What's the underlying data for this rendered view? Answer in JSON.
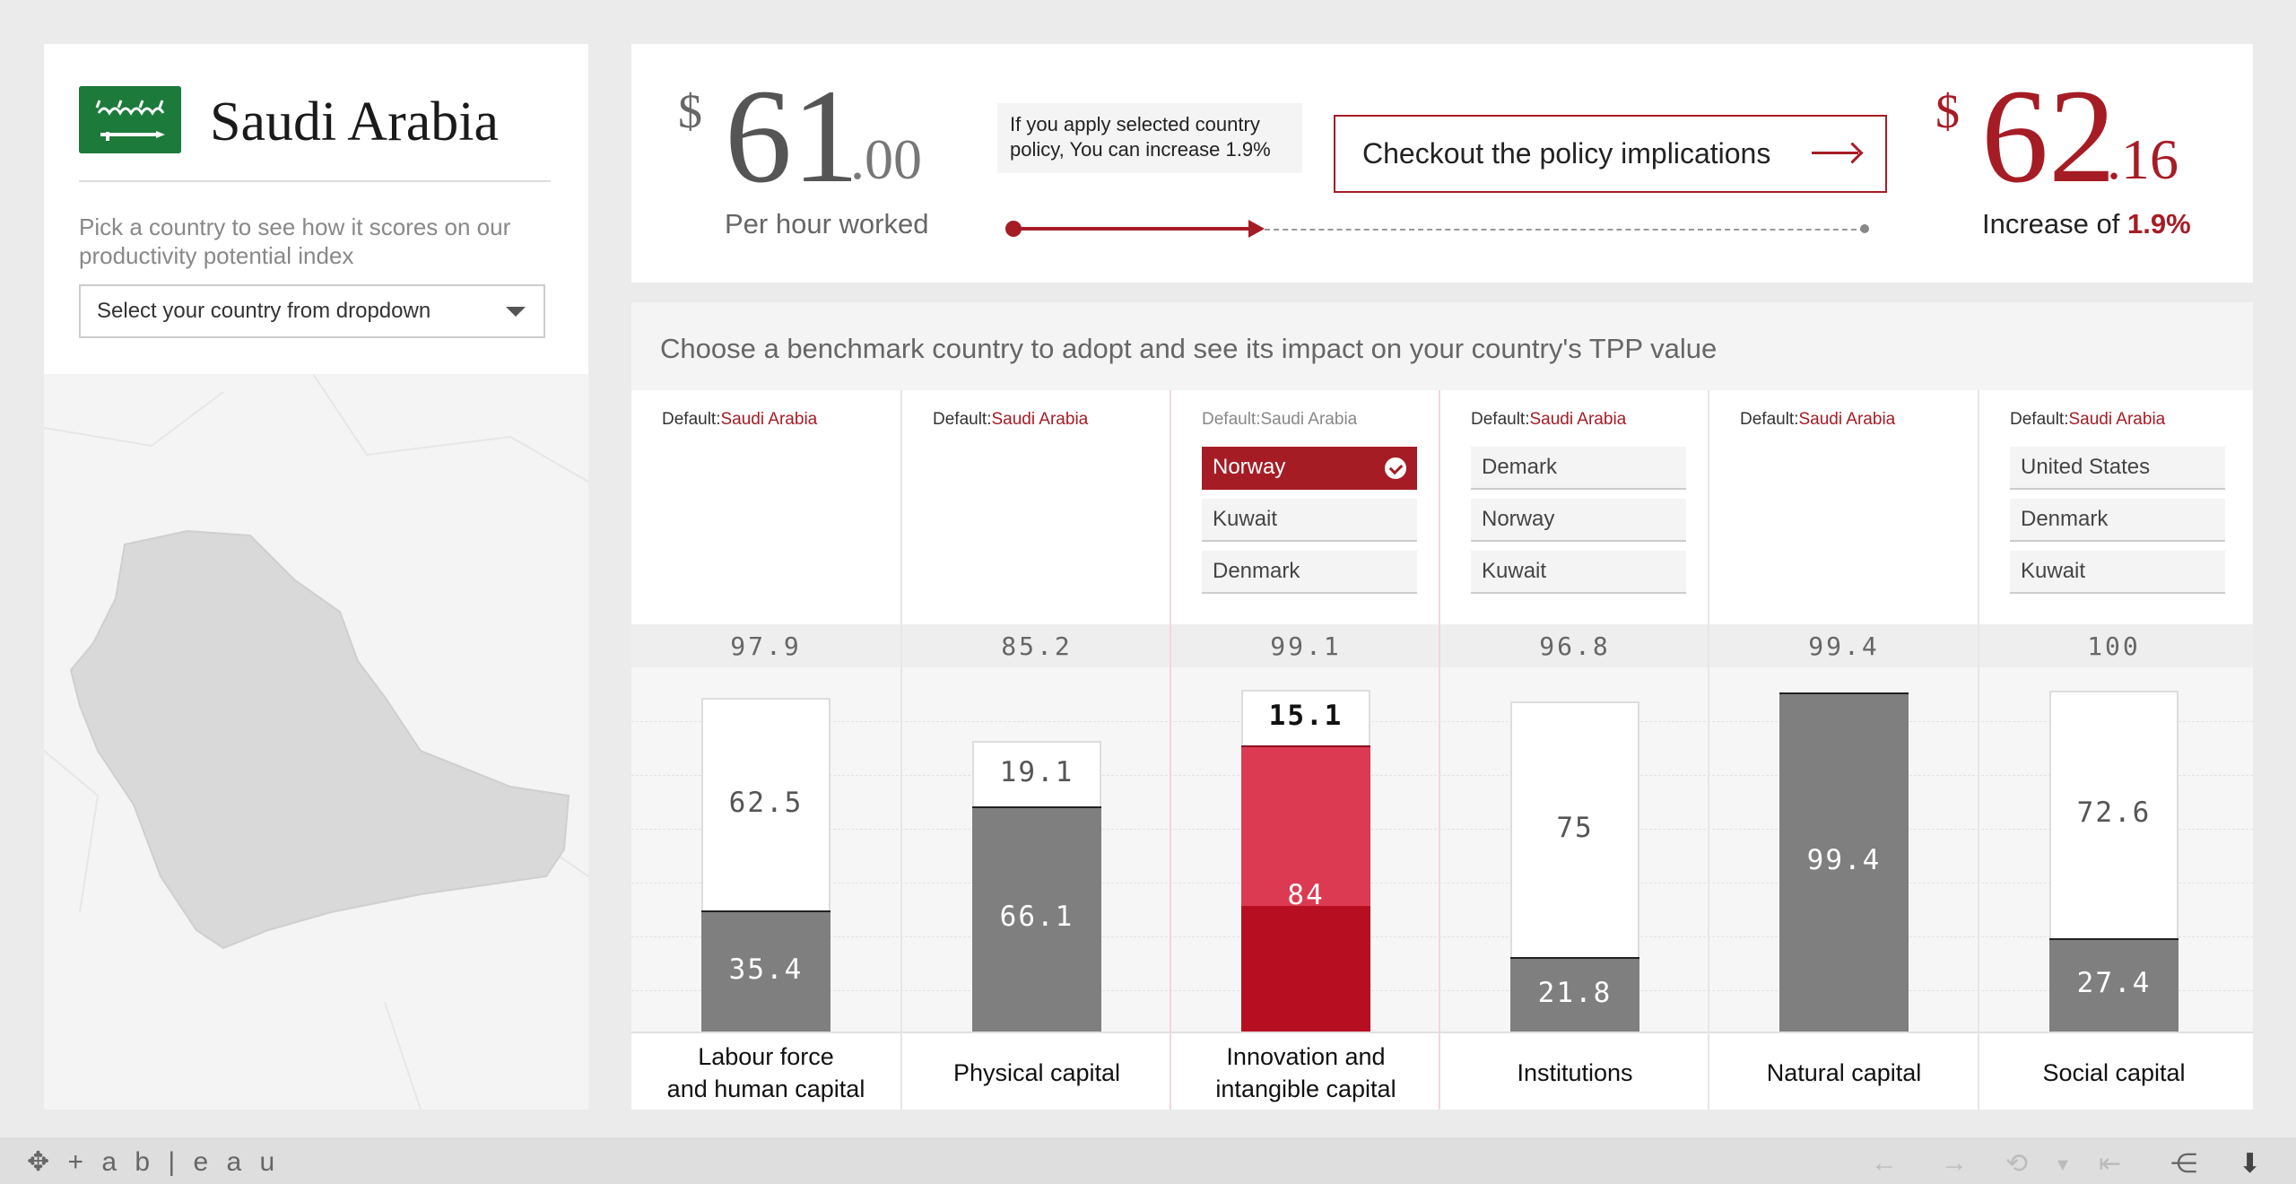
{
  "left_panel": {
    "country": "Saudi Arabia",
    "flag_icon": "saudi-flag-icon",
    "prompt": "Pick a country to see how it scores on our productivity potential index",
    "dropdown_placeholder": "Select your country from dropdown"
  },
  "top_panel": {
    "current": {
      "sign": "$",
      "int": "61",
      "dec": ".00",
      "caption": "Per hour worked"
    },
    "policy_note": "If you apply selected country policy, You can increase 1.9%",
    "checkout_label": "Checkout the policy implications",
    "projected": {
      "sign": "$",
      "int": "62",
      "dec": ".16",
      "caption": "Increase of ",
      "pct": "1.9%"
    },
    "slider_progress": 0.28
  },
  "benchmark": {
    "title": "Choose a benchmark country to adopt and see its impact on your country's TPP value",
    "default_prefix": "Default:",
    "columns": [
      {
        "default": "Saudi Arabia",
        "options": [],
        "score": "97.9",
        "category_line1": "Labour force",
        "category_line2": "and human capital"
      },
      {
        "default": "Saudi Arabia",
        "options": [],
        "score": "85.2",
        "category_line1": "Physical capital",
        "category_line2": ""
      },
      {
        "default": "Saudi Arabia",
        "options": [
          "Norway",
          "Kuwait",
          "Denmark"
        ],
        "selected": "Norway",
        "score": "99.1",
        "category_line1": "Innovation and",
        "category_line2": "intangible capital"
      },
      {
        "default": "Saudi Arabia",
        "options": [
          "Demark",
          "Norway",
          "Kuwait"
        ],
        "score": "96.8",
        "category_line1": "Institutions",
        "category_line2": ""
      },
      {
        "default": "Saudi Arabia",
        "options": [],
        "score": "99.4",
        "category_line1": "Natural capital",
        "category_line2": ""
      },
      {
        "default": "Saudi Arabia",
        "options": [
          "United States",
          "Denmark",
          "Kuwait"
        ],
        "score": "100",
        "category_line1": "Social capital",
        "category_line2": ""
      }
    ]
  },
  "chart_data": {
    "type": "bar",
    "stacked": true,
    "categories": [
      "Labour force and human capital",
      "Physical capital",
      "Innovation and intangible capital",
      "Institutions",
      "Natural capital",
      "Social capital"
    ],
    "series": [
      {
        "values": [
          35.4,
          66.1,
          84.0,
          21.8,
          99.4,
          27.4
        ]
      },
      {
        "values": [
          62.5,
          19.1,
          15.1,
          75,
          0,
          72.6
        ]
      }
    ],
    "totals": [
      "97.9",
      "85.2",
      "99.1",
      "96.8",
      "99.4",
      "100"
    ],
    "ylim": [
      0,
      100
    ],
    "colors": {
      "current": "#7f7f7f",
      "gap": "#ffffff",
      "selected_improved": "#dc3a52",
      "selected_base": "#b80e22"
    }
  },
  "footer": {
    "brand": "+ a b | e a u",
    "icons": [
      "back-icon",
      "forward-icon",
      "revert-icon",
      "reset-icon",
      "share-icon",
      "download-icon"
    ]
  },
  "colors": {
    "accent": "#a61c25"
  }
}
